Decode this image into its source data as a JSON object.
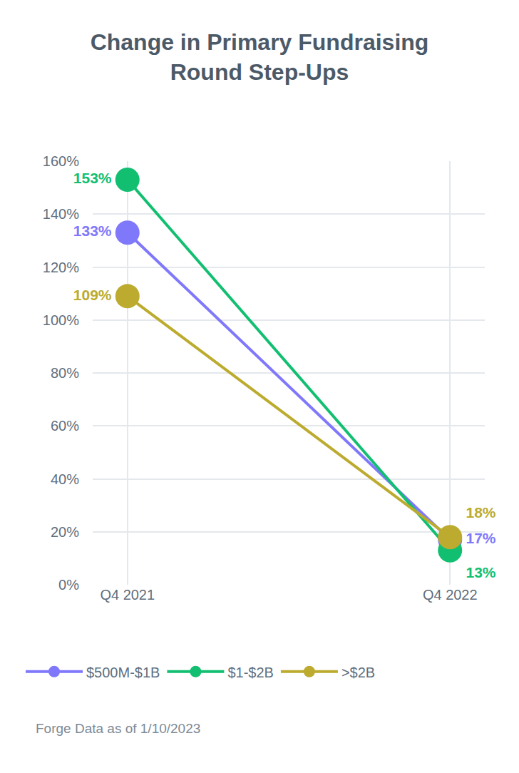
{
  "chart_data": {
    "type": "line",
    "title": "Change in Primary Fundraising Round Step-Ups",
    "source": "Forge Data as of 1/10/2023",
    "categories": [
      "Q4 2021",
      "Q4 2022"
    ],
    "series": [
      {
        "name": "$500M-$1B",
        "color": "#8078fb",
        "values": [
          133,
          17
        ],
        "value_labels": [
          "133%",
          "17%"
        ]
      },
      {
        "name": "$1-$2B",
        "color": "#12bf71",
        "values": [
          153,
          13
        ],
        "value_labels": [
          "153%",
          "13%"
        ]
      },
      {
        "name": ">$2B",
        "color": "#bcab2f",
        "values": [
          109,
          18
        ],
        "value_labels": [
          "109%",
          "18%"
        ]
      }
    ],
    "ylim": [
      0,
      160
    ],
    "yticks": [
      {
        "value": 0,
        "label": "0%"
      },
      {
        "value": 20,
        "label": "20%"
      },
      {
        "value": 40,
        "label": "40%"
      },
      {
        "value": 60,
        "label": "60%"
      },
      {
        "value": 80,
        "label": "80%"
      },
      {
        "value": 100,
        "label": "100%"
      },
      {
        "value": 120,
        "label": "120%"
      },
      {
        "value": 140,
        "label": "140%"
      },
      {
        "value": 160,
        "label": "160%"
      }
    ],
    "grid": true,
    "legend": "bottom",
    "data_labels": true,
    "marker": "circle"
  }
}
